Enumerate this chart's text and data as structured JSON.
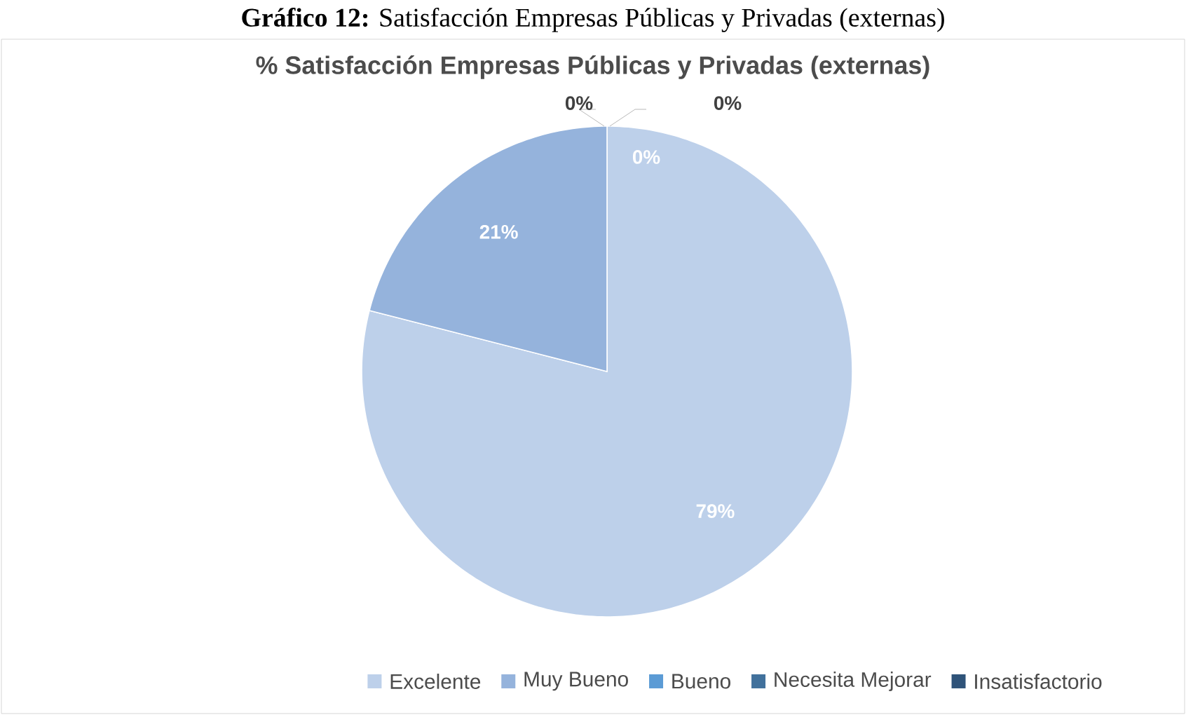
{
  "chart_data": {
    "type": "pie",
    "title": "**Gráfico 12:** Satisfacción Empresas Públicas y Privadas (externas)",
    "subtitle": "% Satisfacción Empresas Públicas y Privadas (externas)",
    "categories": [
      "Excelente",
      "Muy Bueno",
      "Bueno",
      "Necesita Mejorar",
      "Insatisfactorio"
    ],
    "values": [
      79,
      21,
      0,
      0,
      0
    ],
    "colors": [
      "#bdd0ea",
      "#95b3dc",
      "#5b9bd5",
      "#41719c",
      "#2f5379"
    ],
    "value_labels": [
      "79%",
      "21%",
      "0%",
      "0%",
      "0%"
    ],
    "legend": "bottom"
  }
}
